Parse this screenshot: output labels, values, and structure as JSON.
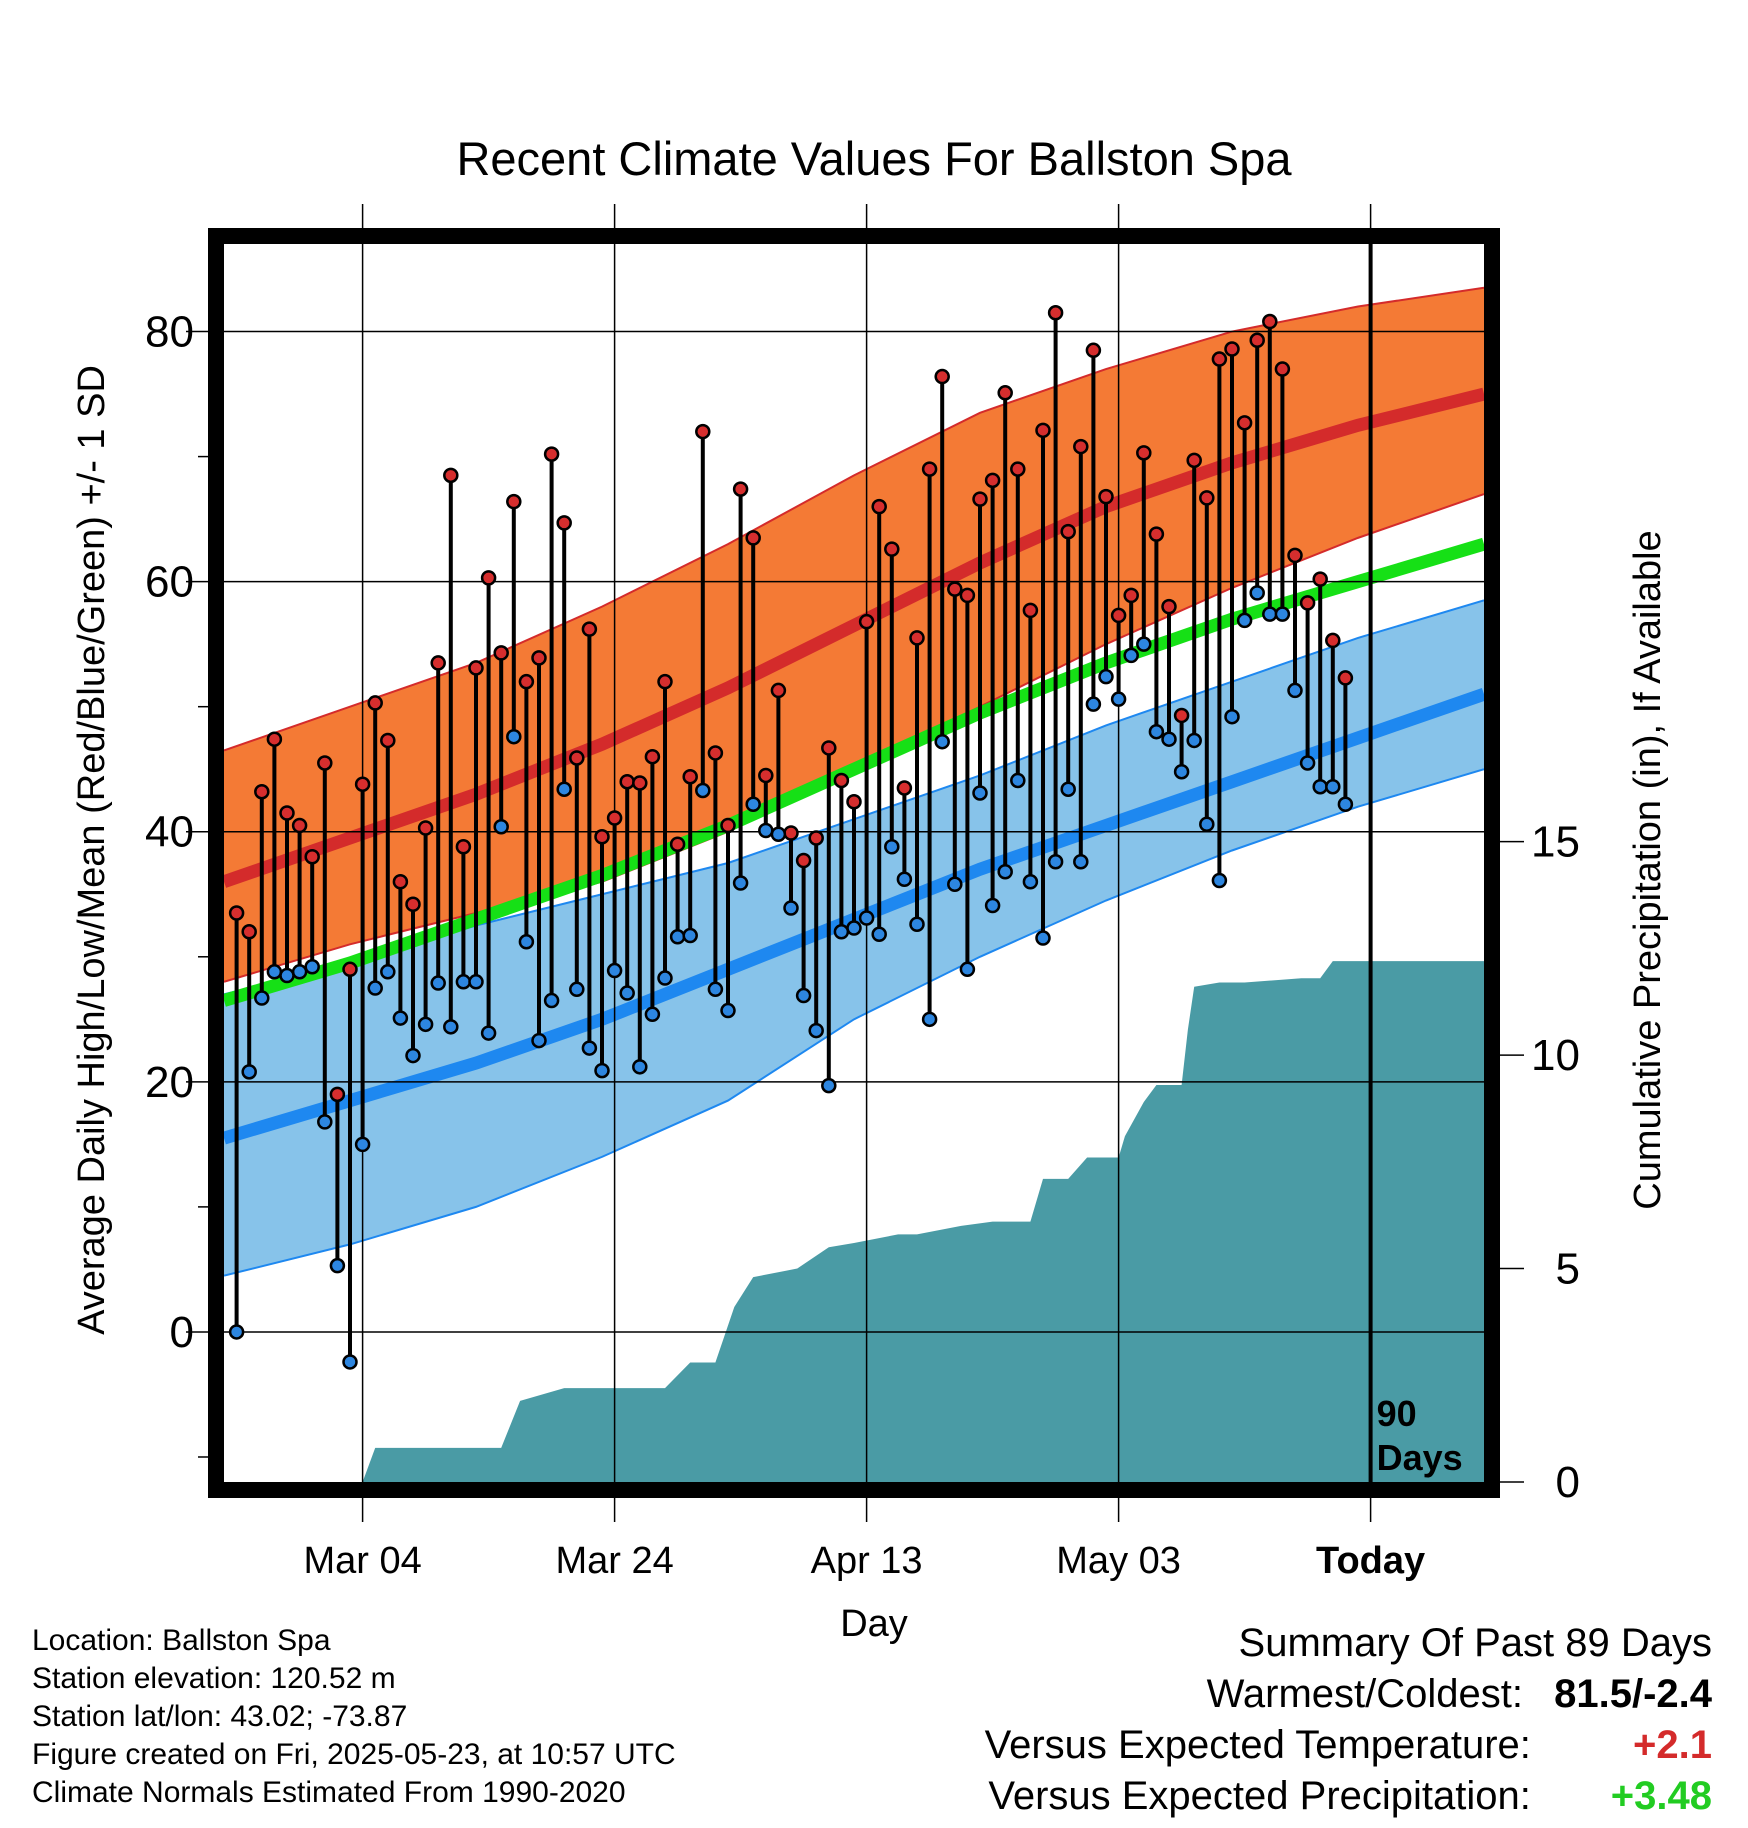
{
  "chart_data": {
    "type": "line",
    "title": "Recent Climate Values For Ballston Spa",
    "xlabel": "Day",
    "ylabel": "Average Daily High/Low/Mean (Red/Blue/Green) +/- 1 SD",
    "y2label": "Cumulative Precipitation (in), If Available",
    "xticks": [
      {
        "day": 11,
        "label": "Mar 04"
      },
      {
        "day": 31,
        "label": "Mar 24"
      },
      {
        "day": 51,
        "label": "Apr 13"
      },
      {
        "day": 71,
        "label": "May 03"
      },
      {
        "day": 91,
        "label": "Today"
      }
    ],
    "xlim": [
      0,
      100
    ],
    "ylim": [
      -12,
      87
    ],
    "yticks": [
      0,
      20,
      40,
      60,
      80
    ],
    "y2lim": [
      0,
      29
    ],
    "y2ticks": [
      0,
      5,
      10,
      15
    ],
    "today_marker": {
      "day": 91,
      "label": "90\nDays"
    },
    "colors": {
      "high_band": "#f47a35",
      "high_mean": "#d42b2b",
      "low_band": "#87c3ea",
      "low_mean": "#1e88f0",
      "mean_normal": "#16e016",
      "precip": "#4a9ba5",
      "high_marker": "#d62e2e",
      "low_marker": "#2d86e0"
    },
    "normals": {
      "x": [
        0,
        10,
        20,
        30,
        40,
        50,
        60,
        70,
        80,
        90,
        100
      ],
      "high_mean": [
        36,
        39.5,
        43,
        47,
        51.5,
        56.5,
        61.5,
        66,
        69.5,
        72.5,
        75
      ],
      "high_upper": [
        46.5,
        50,
        53.5,
        58,
        63,
        68.5,
        73.5,
        77,
        80,
        82,
        83.5
      ],
      "high_lower": [
        28,
        31,
        33.5,
        36,
        40,
        45,
        50,
        55,
        59.5,
        63.5,
        67
      ],
      "low_mean": [
        15.5,
        18.5,
        21.5,
        25,
        29,
        33,
        37,
        40.5,
        44,
        47.5,
        51
      ],
      "low_upper": [
        27,
        29.5,
        32.5,
        35,
        37.5,
        41,
        44.5,
        48.5,
        52,
        55.5,
        58.5
      ],
      "low_lower": [
        4.5,
        7,
        10,
        14,
        18.5,
        25,
        30,
        34.5,
        38.5,
        42,
        45
      ],
      "mean_normal": [
        26.5,
        29.5,
        33,
        36.5,
        40.5,
        45,
        49.5,
        53.5,
        57,
        60,
        63
      ]
    },
    "series": [
      {
        "name": "High",
        "values": [
          33.5,
          32,
          43.2,
          47.4,
          41.5,
          40.5,
          38,
          45.5,
          19,
          29,
          43.8,
          50.3,
          47.3,
          36,
          34.2,
          40.3,
          53.5,
          68.5,
          38.8,
          53.1,
          60.3,
          54.3,
          66.4,
          52,
          53.9,
          70.2,
          64.7,
          45.9,
          56.2,
          39.6,
          41.1,
          44,
          43.9,
          46,
          52,
          39,
          44.4,
          72,
          46.3,
          40.5,
          67.4,
          63.5,
          44.5,
          51.3,
          39.9,
          37.7,
          39.5,
          46.7,
          44.1,
          42.4,
          56.8,
          66,
          62.6,
          43.5,
          55.5,
          69,
          76.4,
          59.4,
          58.9,
          66.6,
          68.1,
          75.1,
          69,
          57.7,
          72.1,
          81.5,
          64,
          70.8,
          78.5,
          66.8,
          57.3,
          58.9,
          70.3,
          63.8,
          58,
          49.3,
          69.7,
          66.7,
          77.8,
          78.6,
          72.7,
          79.3,
          80.8,
          77,
          62.1,
          58.3,
          60.2,
          55.3,
          52.3
        ]
      },
      {
        "name": "Low",
        "values": [
          0,
          20.8,
          26.7,
          28.8,
          28.5,
          28.8,
          29.2,
          16.8,
          5.3,
          -2.4,
          15,
          27.5,
          28.8,
          25.1,
          22.1,
          24.6,
          27.9,
          24.4,
          28,
          28,
          23.9,
          40.4,
          47.6,
          31.2,
          23.3,
          26.5,
          43.4,
          27.4,
          22.7,
          20.9,
          28.9,
          27.1,
          21.2,
          25.4,
          28.3,
          31.6,
          31.7,
          43.3,
          27.4,
          25.7,
          35.9,
          42.2,
          40.1,
          39.8,
          33.9,
          26.9,
          24.1,
          19.7,
          32,
          32.3,
          33.1,
          31.8,
          38.8,
          36.2,
          32.6,
          25,
          47.2,
          35.8,
          29,
          43.1,
          34.1,
          36.8,
          44.1,
          36,
          31.5,
          37.6,
          43.4,
          37.6,
          50.2,
          52.4,
          50.6,
          54.1,
          55,
          48,
          47.4,
          44.8,
          47.3,
          40.6,
          36.1,
          49.2,
          56.9,
          59.1,
          57.4,
          57.4,
          51.3,
          45.5,
          43.6,
          43.6,
          42.2
        ]
      },
      {
        "name": "Cumulative Precipitation",
        "x": [
          11,
          12,
          22,
          23.5,
          27,
          35,
          37,
          39,
          40.5,
          42,
          45.5,
          48,
          50,
          53.5,
          55,
          58.5,
          61,
          64,
          65,
          67,
          68.5,
          71,
          71.5,
          73,
          74,
          76,
          76.5,
          77,
          79,
          81,
          85.5,
          87,
          88,
          95,
          100
        ],
        "values": [
          0,
          0.8,
          0.8,
          1.9,
          2.2,
          2.2,
          2.8,
          2.8,
          4.1,
          4.8,
          5,
          5.5,
          5.6,
          5.8,
          5.8,
          6,
          6.1,
          6.1,
          7.1,
          7.1,
          7.6,
          7.6,
          8.1,
          8.9,
          9.3,
          9.3,
          10.6,
          11.6,
          11.7,
          11.7,
          11.8,
          11.8,
          12.2,
          12.2,
          12.2
        ]
      }
    ]
  },
  "info": {
    "location": "Location: Ballston Spa",
    "elevation": "Station elevation: 120.52 m",
    "latlon": "Station lat/lon: 43.02; -73.87",
    "created": "Figure created on Fri, 2025-05-23, at 10:57 UTC",
    "normals": "Climate Normals Estimated From 1990-2020"
  },
  "summary": {
    "title": "Summary Of Past 89 Days",
    "warmest_label": "Warmest/Coldest:",
    "warmest_value": "81.5/-2.4",
    "temp_label": "Versus Expected Temperature:",
    "temp_value": "+2.1",
    "temp_color": "#d42b2b",
    "precip_label": "Versus Expected Precipitation:",
    "precip_value": "+3.48",
    "precip_color": "#22cc22"
  }
}
